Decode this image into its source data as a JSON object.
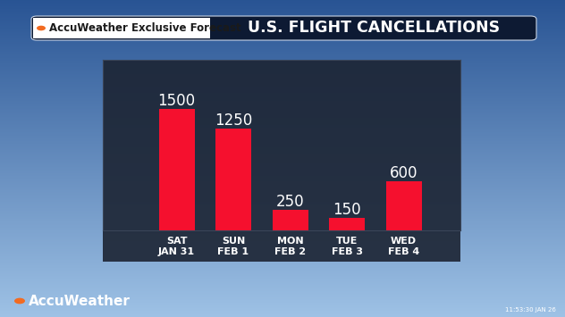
{
  "chart_data": {
    "type": "bar",
    "title": "U.S. FLIGHT CANCELLATIONS",
    "subtitle": "AccuWeather Exclusive Forecast",
    "source": "AccuWeather",
    "timestamp": "11:53:30 JAN 26",
    "categories": [
      "SAT\nJAN 31",
      "SUN\nFEB 1",
      "MON\nFEB 2",
      "TUE\nFEB 3",
      "WED\nFEB 4"
    ],
    "values": [
      1500,
      1250,
      250,
      150,
      600
    ],
    "color": "#f5102e",
    "ylim": [
      0,
      2100
    ],
    "yticks": [],
    "grid": false,
    "data_labels": true,
    "tick_labels": "x"
  }
}
